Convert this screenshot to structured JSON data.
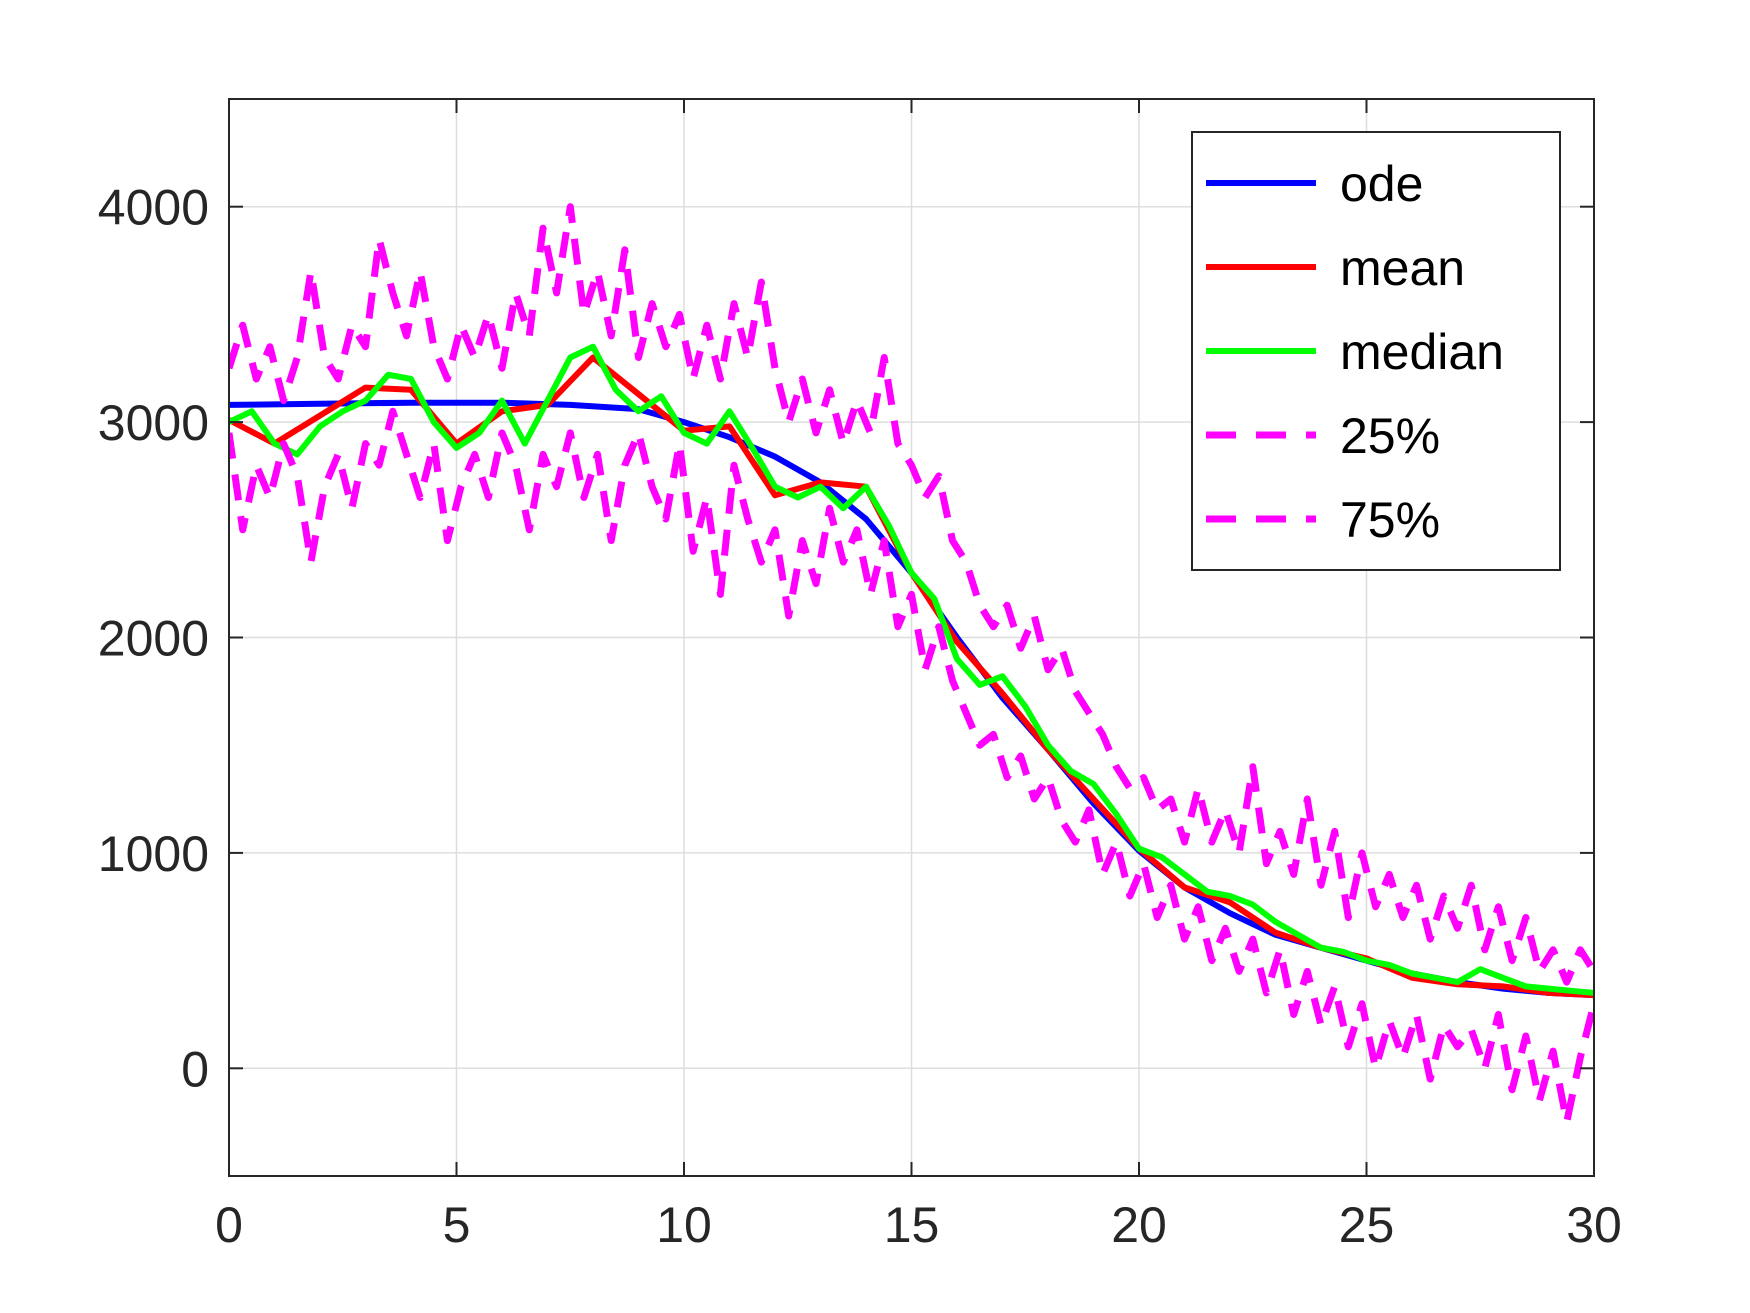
{
  "chart_data": {
    "type": "line",
    "title": "",
    "xlabel": "",
    "ylabel": "",
    "xlim": [
      0,
      30
    ],
    "ylim": [
      -500,
      4500
    ],
    "xticks": [
      0,
      5,
      10,
      15,
      20,
      25,
      30
    ],
    "yticks": [
      0,
      1000,
      2000,
      3000,
      4000
    ],
    "grid": true,
    "legend_position": "top-right",
    "series": [
      {
        "name": "ode",
        "color": "#0000ff",
        "style": "solid",
        "x": [
          0,
          2,
          4,
          6,
          7.5,
          9,
          10,
          11,
          12,
          13,
          14,
          15,
          16,
          17,
          18,
          19,
          20,
          21,
          22,
          23,
          24,
          25,
          26,
          27,
          28,
          29,
          30
        ],
        "y": [
          3080,
          3085,
          3090,
          3090,
          3080,
          3060,
          3000,
          2930,
          2840,
          2720,
          2550,
          2300,
          2000,
          1720,
          1480,
          1230,
          1010,
          840,
          720,
          620,
          560,
          500,
          440,
          400,
          370,
          350,
          340
        ]
      },
      {
        "name": "mean",
        "color": "#ff0000",
        "style": "solid",
        "x": [
          0,
          1,
          2,
          3,
          4,
          5,
          6,
          7,
          8,
          9,
          10,
          11,
          12,
          13,
          14,
          15,
          16,
          17,
          18,
          19,
          20,
          21,
          22,
          23,
          24,
          25,
          26,
          27,
          28,
          29,
          30
        ],
        "y": [
          3010,
          2900,
          3030,
          3160,
          3150,
          2900,
          3050,
          3080,
          3300,
          3130,
          2960,
          2980,
          2660,
          2720,
          2700,
          2300,
          1980,
          1740,
          1480,
          1250,
          1020,
          840,
          770,
          630,
          560,
          510,
          420,
          390,
          380,
          350,
          340
        ]
      },
      {
        "name": "median",
        "color": "#00ff00",
        "style": "solid",
        "x": [
          0,
          0.5,
          1,
          1.5,
          2,
          2.5,
          3,
          3.5,
          4,
          4.5,
          5,
          5.5,
          6,
          6.5,
          7,
          7.5,
          8,
          8.5,
          9,
          9.5,
          10,
          10.5,
          11,
          11.5,
          12,
          12.5,
          13,
          13.5,
          14,
          14.5,
          15,
          15.5,
          16,
          16.5,
          17,
          17.5,
          18,
          18.5,
          19,
          19.5,
          20,
          20.5,
          21,
          21.5,
          22,
          22.5,
          23,
          23.5,
          24,
          24.5,
          25,
          25.5,
          26,
          26.5,
          27,
          27.5,
          28,
          28.5,
          29,
          29.5,
          30
        ],
        "y": [
          3000,
          3050,
          2900,
          2850,
          2980,
          3050,
          3100,
          3220,
          3200,
          3000,
          2880,
          2950,
          3100,
          2900,
          3100,
          3300,
          3350,
          3150,
          3050,
          3120,
          2950,
          2900,
          3050,
          2880,
          2700,
          2650,
          2700,
          2600,
          2700,
          2520,
          2300,
          2180,
          1900,
          1780,
          1820,
          1680,
          1500,
          1380,
          1320,
          1180,
          1020,
          980,
          900,
          820,
          800,
          760,
          680,
          620,
          560,
          540,
          500,
          480,
          440,
          420,
          400,
          460,
          420,
          380,
          370,
          360,
          350
        ]
      },
      {
        "name": "25%",
        "color": "#ff00ff",
        "style": "dashed",
        "x": [
          0,
          0.3,
          0.6,
          0.9,
          1.2,
          1.5,
          1.8,
          2.1,
          2.4,
          2.7,
          3,
          3.3,
          3.6,
          3.9,
          4.2,
          4.5,
          4.8,
          5.1,
          5.4,
          5.7,
          6,
          6.3,
          6.6,
          6.9,
          7.2,
          7.5,
          7.8,
          8.1,
          8.4,
          8.7,
          9,
          9.3,
          9.6,
          9.9,
          10.2,
          10.5,
          10.8,
          11.1,
          11.4,
          11.7,
          12,
          12.3,
          12.6,
          12.9,
          13.2,
          13.5,
          13.8,
          14.1,
          14.4,
          14.7,
          15,
          15.3,
          15.6,
          15.9,
          16.2,
          16.5,
          16.8,
          17.1,
          17.4,
          17.7,
          18,
          18.3,
          18.6,
          18.9,
          19.2,
          19.5,
          19.8,
          20.1,
          20.4,
          20.7,
          21,
          21.3,
          21.6,
          21.9,
          22.2,
          22.5,
          22.8,
          23.1,
          23.4,
          23.7,
          24,
          24.3,
          24.6,
          24.9,
          25.2,
          25.5,
          25.8,
          26.1,
          26.4,
          26.7,
          27,
          27.3,
          27.6,
          27.9,
          28.2,
          28.5,
          28.8,
          29.1,
          29.4,
          29.7,
          30
        ],
        "y": [
          2950,
          2500,
          2800,
          2650,
          2900,
          2750,
          2350,
          2700,
          2850,
          2600,
          2900,
          2800,
          3050,
          2850,
          2650,
          2900,
          2450,
          2700,
          2850,
          2650,
          2950,
          2800,
          2500,
          2850,
          2700,
          2950,
          2650,
          2850,
          2450,
          2800,
          2950,
          2700,
          2550,
          2900,
          2400,
          2650,
          2200,
          2800,
          2550,
          2350,
          2500,
          2100,
          2450,
          2250,
          2600,
          2350,
          2500,
          2200,
          2450,
          2050,
          2200,
          1850,
          2050,
          1800,
          1650,
          1500,
          1550,
          1350,
          1450,
          1250,
          1350,
          1150,
          1050,
          1200,
          900,
          1050,
          800,
          950,
          700,
          850,
          600,
          750,
          500,
          650,
          450,
          600,
          350,
          550,
          250,
          450,
          200,
          380,
          100,
          300,
          0,
          220,
          50,
          250,
          -50,
          200,
          100,
          180,
          0,
          250,
          -100,
          150,
          -150,
          80,
          -250,
          50,
          300
        ]
      },
      {
        "name": "75%",
        "color": "#ff00ff",
        "style": "dashed",
        "x": [
          0,
          0.3,
          0.6,
          0.9,
          1.2,
          1.5,
          1.8,
          2.1,
          2.4,
          2.7,
          3,
          3.3,
          3.6,
          3.9,
          4.2,
          4.5,
          4.8,
          5.1,
          5.4,
          5.7,
          6,
          6.3,
          6.6,
          6.9,
          7.2,
          7.5,
          7.8,
          8.1,
          8.4,
          8.7,
          9,
          9.3,
          9.6,
          9.9,
          10.2,
          10.5,
          10.8,
          11.1,
          11.4,
          11.7,
          12,
          12.3,
          12.6,
          12.9,
          13.2,
          13.5,
          13.8,
          14.1,
          14.4,
          14.7,
          15,
          15.3,
          15.6,
          15.9,
          16.2,
          16.5,
          16.8,
          17.1,
          17.4,
          17.7,
          18,
          18.3,
          18.6,
          18.9,
          19.2,
          19.5,
          19.8,
          20.1,
          20.4,
          20.7,
          21,
          21.3,
          21.6,
          21.9,
          22.2,
          22.5,
          22.8,
          23.1,
          23.4,
          23.7,
          24,
          24.3,
          24.6,
          24.9,
          25.2,
          25.5,
          25.8,
          26.1,
          26.4,
          26.7,
          27,
          27.3,
          27.6,
          27.9,
          28.2,
          28.5,
          28.8,
          29.1,
          29.4,
          29.7,
          30
        ],
        "y": [
          3250,
          3450,
          3200,
          3350,
          3100,
          3300,
          3700,
          3300,
          3200,
          3450,
          3350,
          3850,
          3600,
          3400,
          3700,
          3350,
          3200,
          3450,
          3300,
          3500,
          3250,
          3600,
          3400,
          3900,
          3600,
          4000,
          3500,
          3700,
          3400,
          3800,
          3300,
          3550,
          3350,
          3500,
          3200,
          3450,
          3200,
          3550,
          3300,
          3650,
          3250,
          3000,
          3200,
          2950,
          3150,
          2900,
          3100,
          2950,
          3300,
          2900,
          2800,
          2650,
          2750,
          2450,
          2350,
          2150,
          2050,
          2150,
          1950,
          2100,
          1850,
          1950,
          1750,
          1650,
          1550,
          1400,
          1300,
          1350,
          1200,
          1250,
          1050,
          1300,
          1050,
          1200,
          1000,
          1400,
          950,
          1100,
          900,
          1250,
          850,
          1100,
          700,
          1000,
          750,
          900,
          700,
          850,
          600,
          800,
          650,
          850,
          550,
          750,
          500,
          700,
          450,
          550,
          400,
          550,
          450
        ]
      }
    ]
  }
}
